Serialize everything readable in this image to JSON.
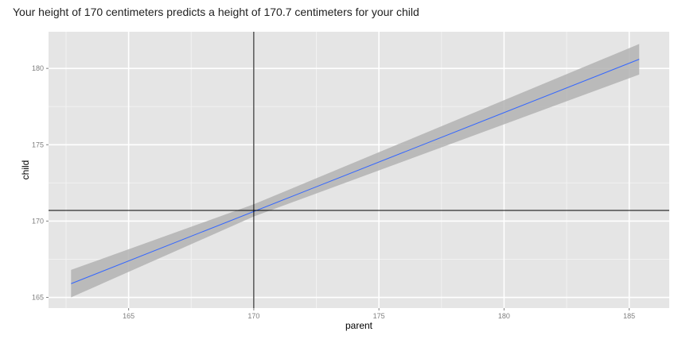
{
  "output": {
    "text": "Your height of 170 centimeters predicts a height of 170.7 centimeters for your child"
  },
  "chart_data": {
    "type": "line",
    "title": "",
    "xlabel": "parent",
    "ylabel": "child",
    "xlim": [
      161.8,
      186.6
    ],
    "ylim": [
      164.3,
      182.4
    ],
    "x_ticks": [
      165,
      170,
      175,
      180,
      185
    ],
    "y_ticks": [
      165,
      170,
      175,
      180
    ],
    "grid": true,
    "series": [
      {
        "x": [
          162.7,
          185.4
        ],
        "y": [
          165.9,
          180.6
        ],
        "color": "#3366ff"
      }
    ],
    "confidence_band": {
      "x": [
        162.7,
        170.0,
        185.4
      ],
      "lower": [
        165.0,
        170.3,
        179.6
      ],
      "upper": [
        166.8,
        171.1,
        181.6
      ],
      "color": "#b3b3b3"
    },
    "reference_lines": {
      "vertical_x": 170,
      "horizontal_y": 170.7,
      "color": "#000000"
    },
    "colors": {
      "panel": "#e5e5e5",
      "grid_major": "#ffffff",
      "grid_minor": "#f2f2f2"
    }
  }
}
